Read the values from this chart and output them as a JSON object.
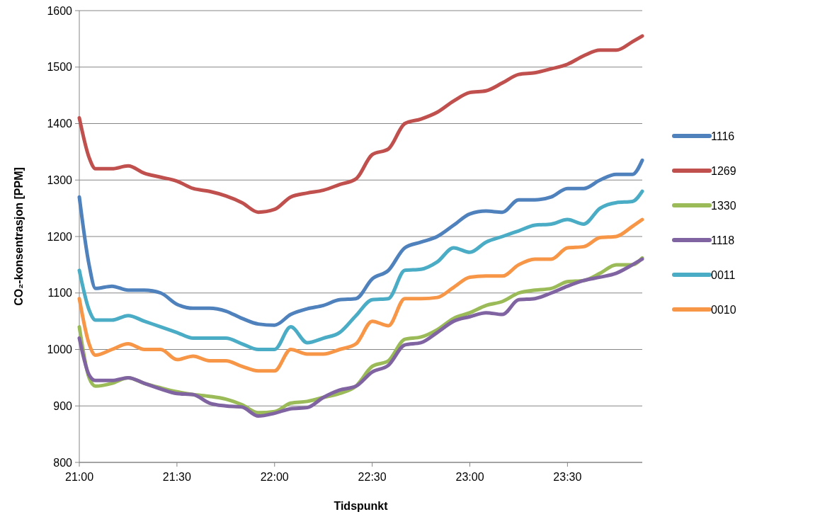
{
  "chart_data": {
    "type": "line",
    "xlabel": "Tidspunkt",
    "ylabel": "CO₂-konsentrasjon [PPM]",
    "x": [
      21,
      21.05,
      21.083,
      21.167,
      21.25,
      21.333,
      21.417,
      21.5,
      21.583,
      21.667,
      21.75,
      21.833,
      21.917,
      22,
      22.083,
      22.167,
      22.25,
      22.333,
      22.417,
      22.5,
      22.583,
      22.667,
      22.75,
      22.833,
      22.917,
      23,
      23.083,
      23.167,
      23.25,
      23.333,
      23.417,
      23.5,
      23.583,
      23.667,
      23.75,
      23.833,
      23.883
    ],
    "xlim": [
      21,
      23.883
    ],
    "xticks": [
      {
        "value": 21,
        "label": "21:00"
      },
      {
        "value": 21.5,
        "label": "21:30"
      },
      {
        "value": 22,
        "label": "22:00"
      },
      {
        "value": 22.5,
        "label": "22:30"
      },
      {
        "value": 23,
        "label": "23:00"
      },
      {
        "value": 23.5,
        "label": "23:30"
      }
    ],
    "ylim": [
      800,
      1600
    ],
    "yticks": [
      800,
      900,
      1000,
      1100,
      1200,
      1300,
      1400,
      1500,
      1600
    ],
    "grid": "y",
    "legend": "right",
    "line_style": "solid",
    "marker": "none",
    "series": [
      {
        "name": "1116",
        "color": "#4f81bd",
        "values": [
          1270,
          1150,
          1108,
          1112,
          1105,
          1105,
          1100,
          1080,
          1073,
          1073,
          1068,
          1055,
          1045,
          1043,
          1062,
          1072,
          1078,
          1088,
          1090,
          1125,
          1140,
          1180,
          1190,
          1200,
          1220,
          1240,
          1245,
          1243,
          1265,
          1265,
          1270,
          1285,
          1285,
          1300,
          1310,
          1310,
          1335
        ]
      },
      {
        "name": "1269",
        "color": "#c0504d",
        "values": [
          1410,
          1340,
          1320,
          1320,
          1325,
          1312,
          1305,
          1298,
          1285,
          1280,
          1272,
          1260,
          1243,
          1248,
          1270,
          1277,
          1282,
          1292,
          1302,
          1345,
          1355,
          1400,
          1408,
          1420,
          1440,
          1455,
          1458,
          1472,
          1487,
          1490,
          1497,
          1505,
          1520,
          1530,
          1530,
          1545,
          1555
        ]
      },
      {
        "name": "1330",
        "color": "#9bbb59",
        "values": [
          1040,
          950,
          935,
          940,
          950,
          940,
          932,
          925,
          920,
          917,
          912,
          902,
          888,
          890,
          905,
          908,
          915,
          922,
          935,
          970,
          980,
          1018,
          1022,
          1035,
          1055,
          1065,
          1078,
          1085,
          1100,
          1105,
          1108,
          1120,
          1122,
          1135,
          1150,
          1150,
          1162
        ]
      },
      {
        "name": "1118",
        "color": "#8064a2",
        "values": [
          1020,
          955,
          945,
          945,
          950,
          940,
          930,
          922,
          920,
          905,
          900,
          898,
          882,
          887,
          895,
          897,
          915,
          928,
          935,
          960,
          972,
          1008,
          1012,
          1030,
          1050,
          1058,
          1065,
          1062,
          1088,
          1090,
          1100,
          1112,
          1122,
          1128,
          1135,
          1150,
          1160
        ]
      },
      {
        "name": "0011",
        "color": "#4bacc6",
        "values": [
          1140,
          1070,
          1052,
          1052,
          1060,
          1050,
          1040,
          1030,
          1020,
          1020,
          1020,
          1010,
          1000,
          1000,
          1040,
          1012,
          1020,
          1030,
          1060,
          1088,
          1090,
          1140,
          1142,
          1155,
          1180,
          1172,
          1190,
          1200,
          1210,
          1220,
          1222,
          1230,
          1222,
          1250,
          1260,
          1262,
          1280
        ]
      },
      {
        "name": "0010",
        "color": "#f79646",
        "values": [
          1090,
          1010,
          990,
          1000,
          1010,
          1000,
          1000,
          982,
          988,
          980,
          980,
          970,
          962,
          962,
          1000,
          992,
          992,
          1000,
          1010,
          1050,
          1042,
          1090,
          1090,
          1092,
          1110,
          1128,
          1130,
          1130,
          1150,
          1160,
          1160,
          1180,
          1182,
          1198,
          1200,
          1218,
          1230
        ]
      }
    ]
  }
}
